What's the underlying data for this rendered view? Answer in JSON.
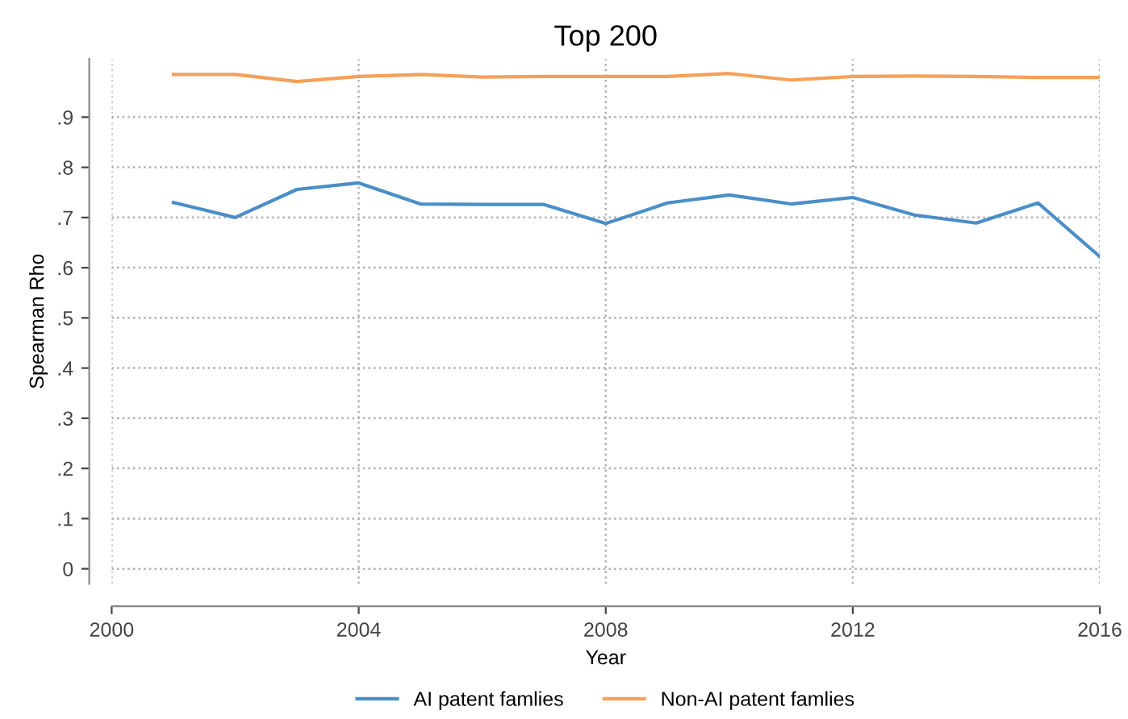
{
  "chart_data": {
    "type": "line",
    "title": "Top 200",
    "xlabel": "Year",
    "ylabel": "Spearman Rho",
    "x": [
      2001,
      2002,
      2003,
      2004,
      2005,
      2006,
      2007,
      2008,
      2009,
      2010,
      2011,
      2012,
      2013,
      2014,
      2015,
      2016
    ],
    "series": [
      {
        "name": "AI patent famlies",
        "color": "#4a8ec8",
        "values": [
          0.73,
          0.7,
          0.756,
          0.769,
          0.727,
          0.726,
          0.726,
          0.688,
          0.729,
          0.745,
          0.727,
          0.74,
          0.705,
          0.689,
          0.729,
          0.622
        ]
      },
      {
        "name": "Non-AI patent famlies",
        "color": "#f5a05a",
        "values": [
          0.985,
          0.985,
          0.971,
          0.981,
          0.985,
          0.98,
          0.981,
          0.981,
          0.981,
          0.987,
          0.974,
          0.981,
          0.982,
          0.981,
          0.979,
          0.979
        ]
      }
    ],
    "xlim": [
      2000,
      2016
    ],
    "xticks": [
      2000,
      2004,
      2008,
      2012,
      2016
    ],
    "ylim": [
      -0.03,
      1.016
    ],
    "yticks": [
      {
        "value": 0,
        "label": "0"
      },
      {
        "value": 0.1,
        "label": ".1"
      },
      {
        "value": 0.2,
        "label": ".2"
      },
      {
        "value": 0.3,
        "label": ".3"
      },
      {
        "value": 0.4,
        "label": ".4"
      },
      {
        "value": 0.5,
        "label": ".5"
      },
      {
        "value": 0.6,
        "label": ".6"
      },
      {
        "value": 0.7,
        "label": ".7"
      },
      {
        "value": 0.8,
        "label": ".8"
      },
      {
        "value": 0.9,
        "label": ".9"
      }
    ],
    "grid": true,
    "legend": "bottom",
    "marker": "none",
    "line_style": "solid"
  }
}
